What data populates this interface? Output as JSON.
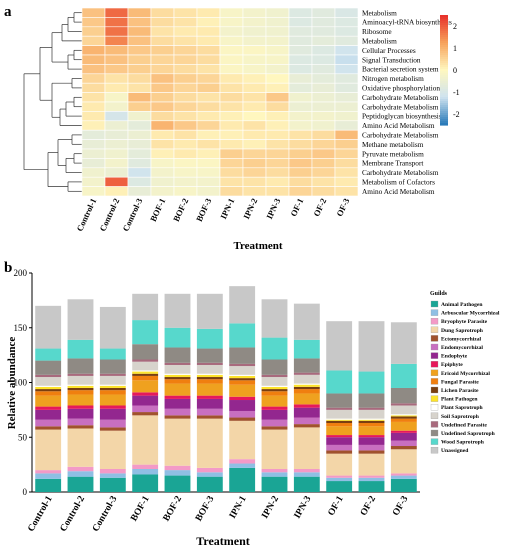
{
  "panel_a_label": "a",
  "panel_b_label": "b",
  "colors": {
    "high": "#e8332c",
    "mid": "#fff7bf",
    "low": "#2b7bb9"
  },
  "chart_data": [
    {
      "type": "heatmap",
      "panel": "a",
      "xlabel": "Treatment",
      "columns": [
        "Control-1",
        "Control-2",
        "Control-3",
        "BOF-1",
        "BOF-2",
        "BOF-3",
        "IPN-1",
        "IPN-2",
        "IPN-3",
        "OF-1",
        "OF-2",
        "OF-3"
      ],
      "rows": [
        "Metabolism",
        "Aminoacyl-tRNA biosynthesis",
        "Ribosome",
        "Metabolism",
        "Cellular Processes",
        "Signal Transduction",
        "Bacterial secretion system",
        "Nitrogen metabolism",
        "Oxidative phosphorylation",
        "Carbohydrate Metabolism",
        "Carbohydrate Metabolism",
        "Peptidoglycan biosynthesis",
        "Amino Acid Metabolism",
        "Carbohydrate Metabolism",
        "Methane metabolism",
        "Pyruvate metabolism",
        "Membrane Transport",
        "Carbohydrate Metabolism",
        "Metabolism of Cofactors",
        "Amino Acid Metabolism"
      ],
      "colorbar_ticks": [
        "2",
        "1",
        "0",
        "-1",
        "-2"
      ],
      "colorbar_range": [
        -2.5,
        2.5
      ],
      "values": [
        [
          0.8,
          1.9,
          0.9,
          0.4,
          0.3,
          0.2,
          -0.2,
          -0.3,
          -0.4,
          -0.9,
          -0.8,
          -1.0
        ],
        [
          0.7,
          1.8,
          0.8,
          0.4,
          0.3,
          0.1,
          -0.2,
          -0.3,
          -0.4,
          -0.9,
          -0.8,
          -0.9
        ],
        [
          0.6,
          1.8,
          0.9,
          0.3,
          0.2,
          0.2,
          -0.3,
          -0.4,
          -0.4,
          -0.8,
          -0.8,
          -0.9
        ],
        [
          0.5,
          1.6,
          0.8,
          0.4,
          0.3,
          0.2,
          -0.2,
          -0.3,
          -0.3,
          -0.8,
          -0.7,
          -0.8
        ],
        [
          1.0,
          0.9,
          0.7,
          0.6,
          0.5,
          0.4,
          -0.1,
          -0.1,
          -0.2,
          -0.8,
          -0.9,
          -1.2
        ],
        [
          0.9,
          0.8,
          0.6,
          0.5,
          0.5,
          0.4,
          -0.1,
          -0.2,
          -0.2,
          -0.9,
          -0.9,
          -1.3
        ],
        [
          0.8,
          0.7,
          0.6,
          0.5,
          0.4,
          0.3,
          -0.1,
          -0.2,
          -0.3,
          -0.9,
          -0.8,
          -1.2
        ],
        [
          0.5,
          0.3,
          0.4,
          0.8,
          0.6,
          0.5,
          0.2,
          0.1,
          0.0,
          -0.6,
          -0.7,
          -0.8
        ],
        [
          0.4,
          0.2,
          0.3,
          0.7,
          0.5,
          0.6,
          0.3,
          0.2,
          0.1,
          -0.7,
          -0.6,
          -0.8
        ],
        [
          0.3,
          -0.2,
          0.9,
          0.6,
          0.4,
          0.3,
          0.4,
          0.3,
          0.7,
          -0.4,
          -0.5,
          -0.6
        ],
        [
          0.2,
          -0.3,
          0.6,
          0.7,
          0.5,
          0.4,
          0.3,
          0.2,
          0.4,
          -0.5,
          -0.5,
          -0.5
        ],
        [
          0.2,
          -1.1,
          -0.4,
          0.4,
          0.3,
          0.2,
          0.1,
          0.0,
          0.1,
          -0.3,
          -0.3,
          -0.4
        ],
        [
          0.1,
          -0.5,
          -0.7,
          1.0,
          0.7,
          0.5,
          0.2,
          0.3,
          0.1,
          -0.3,
          -0.4,
          -0.6
        ],
        [
          -0.7,
          -0.6,
          -0.5,
          0.2,
          0.3,
          0.1,
          0.1,
          0.2,
          0.2,
          0.3,
          0.4,
          0.9
        ],
        [
          -0.6,
          -0.5,
          -0.6,
          0.3,
          0.2,
          0.3,
          0.2,
          0.1,
          0.3,
          0.4,
          0.5,
          0.6
        ],
        [
          -0.5,
          -0.4,
          -0.7,
          0.1,
          0.2,
          0.1,
          0.6,
          0.5,
          0.5,
          0.6,
          0.7,
          0.5
        ],
        [
          -0.6,
          -0.3,
          -0.8,
          -0.2,
          -0.1,
          -0.1,
          0.5,
          0.6,
          0.5,
          0.7,
          0.6,
          0.4
        ],
        [
          -0.4,
          -0.5,
          -1.2,
          -0.3,
          -0.2,
          -0.2,
          0.4,
          0.5,
          0.4,
          0.6,
          0.5,
          0.3
        ],
        [
          -0.3,
          2.0,
          -0.9,
          -0.4,
          -0.3,
          -0.3,
          0.3,
          0.3,
          0.2,
          0.4,
          0.3,
          0.2
        ],
        [
          -0.2,
          0.1,
          -0.6,
          -0.3,
          -0.2,
          -0.3,
          0.4,
          0.3,
          0.3,
          0.5,
          0.4,
          0.3
        ]
      ]
    },
    {
      "type": "bar",
      "stacked": true,
      "panel": "b",
      "xlabel": "Treatment",
      "ylabel": "Relative abundance",
      "ylim": [
        0,
        200
      ],
      "yticks": [
        "0",
        "50",
        "100",
        "150",
        "200"
      ],
      "categories": [
        "Control-1",
        "Control-2",
        "Control-3",
        "BOF-1",
        "BOF-2",
        "BOF-3",
        "IPN-1",
        "IPN-2",
        "IPN-3",
        "OF-1",
        "OF-2",
        "OF-3"
      ],
      "legend_title": "Guilds",
      "legend_position": "right",
      "series": [
        {
          "name": "Animal Pathogen",
          "color": "#1aa595",
          "values": [
            12,
            14,
            13,
            16,
            15,
            14,
            22,
            14,
            14,
            10,
            10,
            12
          ]
        },
        {
          "name": "Arbuscular Mycorrhizal",
          "color": "#8fbfe4",
          "values": [
            5,
            5,
            4,
            5,
            5,
            4,
            4,
            4,
            4,
            3,
            3,
            3
          ]
        },
        {
          "name": "Bryophyte Parasite",
          "color": "#f39ac7",
          "values": [
            3,
            4,
            4,
            4,
            4,
            4,
            4,
            3,
            3,
            2,
            2,
            2
          ]
        },
        {
          "name": "Dung Saprotroph",
          "color": "#f3d6a8",
          "values": [
            37,
            35,
            35,
            45,
            43,
            45,
            35,
            36,
            38,
            20,
            20,
            22
          ]
        },
        {
          "name": "Ectomycorrhizal",
          "color": "#a0522d",
          "values": [
            3,
            3,
            3,
            3,
            3,
            3,
            3,
            3,
            3,
            3,
            3,
            3
          ]
        },
        {
          "name": "Endomycorrhizal",
          "color": "#c86fc0",
          "values": [
            6,
            6,
            7,
            6,
            6,
            6,
            6,
            6,
            6,
            5,
            5,
            5
          ]
        },
        {
          "name": "Endophyte",
          "color": "#93278f",
          "values": [
            9,
            9,
            10,
            9,
            9,
            9,
            10,
            9,
            9,
            7,
            7,
            7
          ]
        },
        {
          "name": "Epiphyte",
          "color": "#e6195b",
          "values": [
            3,
            3,
            3,
            3,
            3,
            3,
            3,
            3,
            3,
            2,
            2,
            2
          ]
        },
        {
          "name": "Ericoid Mycorrhizal",
          "color": "#efa11f",
          "values": [
            10,
            10,
            10,
            11,
            11,
            11,
            11,
            10,
            10,
            8,
            8,
            8
          ]
        },
        {
          "name": "Fungal Parasite",
          "color": "#f07f0f",
          "values": [
            4,
            4,
            4,
            4,
            4,
            4,
            4,
            4,
            4,
            3,
            3,
            3
          ]
        },
        {
          "name": "Lichen Parasite",
          "color": "#7a3f10",
          "values": [
            2,
            2,
            2,
            2,
            2,
            2,
            2,
            2,
            2,
            2,
            2,
            2
          ]
        },
        {
          "name": "Plant Pathogen",
          "color": "#fde32b",
          "values": [
            2,
            2,
            2,
            2,
            2,
            2,
            2,
            2,
            2,
            1,
            1,
            1
          ]
        },
        {
          "name": "Plant Saprotroph",
          "color": "#ffffff",
          "values": [
            1,
            1,
            1,
            1,
            1,
            1,
            1,
            1,
            1,
            1,
            1,
            1
          ]
        },
        {
          "name": "Soil Saprotroph",
          "color": "#d7d3cc",
          "values": [
            8,
            8,
            8,
            8,
            8,
            8,
            8,
            8,
            8,
            8,
            8,
            8
          ]
        },
        {
          "name": "Undefined Parasite",
          "color": "#a86a7d",
          "values": [
            2,
            2,
            2,
            2,
            2,
            2,
            2,
            2,
            2,
            2,
            2,
            2
          ]
        },
        {
          "name": "Undefined Saprotroph",
          "color": "#8f8a84",
          "values": [
            13,
            14,
            13,
            14,
            14,
            13,
            15,
            14,
            13,
            13,
            13,
            14
          ]
        },
        {
          "name": "Wood Saprotroph",
          "color": "#57d8cc",
          "values": [
            11,
            17,
            10,
            22,
            18,
            18,
            22,
            20,
            17,
            21,
            20,
            22
          ]
        },
        {
          "name": "Unassigned",
          "color": "#c8c8c8",
          "values": [
            39,
            37,
            38,
            24,
            31,
            32,
            34,
            35,
            33,
            45,
            46,
            38
          ]
        }
      ]
    }
  ]
}
